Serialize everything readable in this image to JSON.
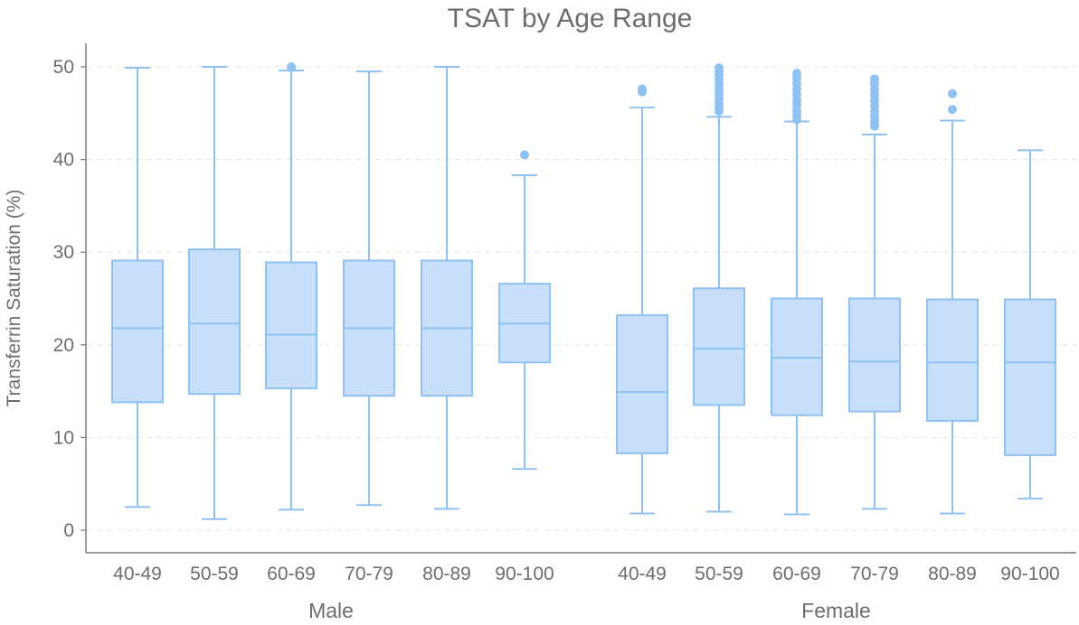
{
  "chart_data": {
    "type": "box",
    "title": "TSAT by Age Range",
    "ylabel": "Transferrin Saturation (%)",
    "ylim": [
      -2.5,
      52.5
    ],
    "yticks": [
      0,
      10,
      20,
      30,
      40,
      50
    ],
    "grid": "horizontal-dashed",
    "colors": {
      "box_fill": "#c7dffb",
      "box_stroke": "#8fc1f2",
      "outlier": "#8fc1f2",
      "axis": "#7a7a7a",
      "grid": "#e6e6e6",
      "text": "#6d6d6d"
    },
    "groups": [
      {
        "name": "Male",
        "categories": [
          "40-49",
          "50-59",
          "60-69",
          "70-79",
          "80-89",
          "90-100"
        ],
        "boxes": [
          {
            "category": "40-49",
            "whisker_low": 2.5,
            "q1": 13.8,
            "median": 21.8,
            "q3": 29.1,
            "whisker_high": 49.9,
            "outliers": []
          },
          {
            "category": "50-59",
            "whisker_low": 1.2,
            "q1": 14.7,
            "median": 22.3,
            "q3": 30.3,
            "whisker_high": 50.0,
            "outliers": []
          },
          {
            "category": "60-69",
            "whisker_low": 2.2,
            "q1": 15.3,
            "median": 21.1,
            "q3": 28.9,
            "whisker_high": 49.6,
            "outliers": [
              49.9,
              50.0
            ]
          },
          {
            "category": "70-79",
            "whisker_low": 2.7,
            "q1": 14.5,
            "median": 21.8,
            "q3": 29.1,
            "whisker_high": 49.5,
            "outliers": []
          },
          {
            "category": "80-89",
            "whisker_low": 2.3,
            "q1": 14.5,
            "median": 21.8,
            "q3": 29.1,
            "whisker_high": 50.0,
            "outliers": []
          },
          {
            "category": "90-100",
            "whisker_low": 6.6,
            "q1": 18.1,
            "median": 22.3,
            "q3": 26.6,
            "whisker_high": 38.3,
            "outliers": [
              40.5
            ]
          }
        ]
      },
      {
        "name": "Female",
        "categories": [
          "40-49",
          "50-59",
          "60-69",
          "70-79",
          "80-89",
          "90-100"
        ],
        "boxes": [
          {
            "category": "40-49",
            "whisker_low": 1.8,
            "q1": 8.3,
            "median": 14.9,
            "q3": 23.2,
            "whisker_high": 45.6,
            "outliers": [
              47.3,
              47.6
            ]
          },
          {
            "category": "50-59",
            "whisker_low": 2.0,
            "q1": 13.5,
            "median": 19.6,
            "q3": 26.1,
            "whisker_high": 44.6,
            "outliers": [
              45.2,
              45.6,
              46.1,
              46.6,
              47.1,
              47.6,
              48.1,
              48.6,
              49.1,
              49.5,
              49.9
            ]
          },
          {
            "category": "60-69",
            "whisker_low": 1.7,
            "q1": 12.4,
            "median": 18.6,
            "q3": 25.0,
            "whisker_high": 44.1,
            "outliers": [
              44.3,
              44.8,
              45.3,
              45.9,
              46.4,
              47.0,
              47.6,
              48.2,
              48.8,
              49.3
            ]
          },
          {
            "category": "70-79",
            "whisker_low": 2.3,
            "q1": 12.8,
            "median": 18.2,
            "q3": 25.0,
            "whisker_high": 42.7,
            "outliers": [
              43.6,
              44.1,
              44.6,
              45.2,
              45.8,
              46.4,
              47.0,
              47.6,
              48.2,
              48.7
            ]
          },
          {
            "category": "80-89",
            "whisker_low": 1.8,
            "q1": 11.8,
            "median": 18.1,
            "q3": 24.9,
            "whisker_high": 44.2,
            "outliers": [
              45.4,
              47.1
            ]
          },
          {
            "category": "90-100",
            "whisker_low": 3.4,
            "q1": 8.1,
            "median": 18.1,
            "q3": 24.9,
            "whisker_high": 41.0,
            "outliers": []
          }
        ]
      }
    ]
  }
}
